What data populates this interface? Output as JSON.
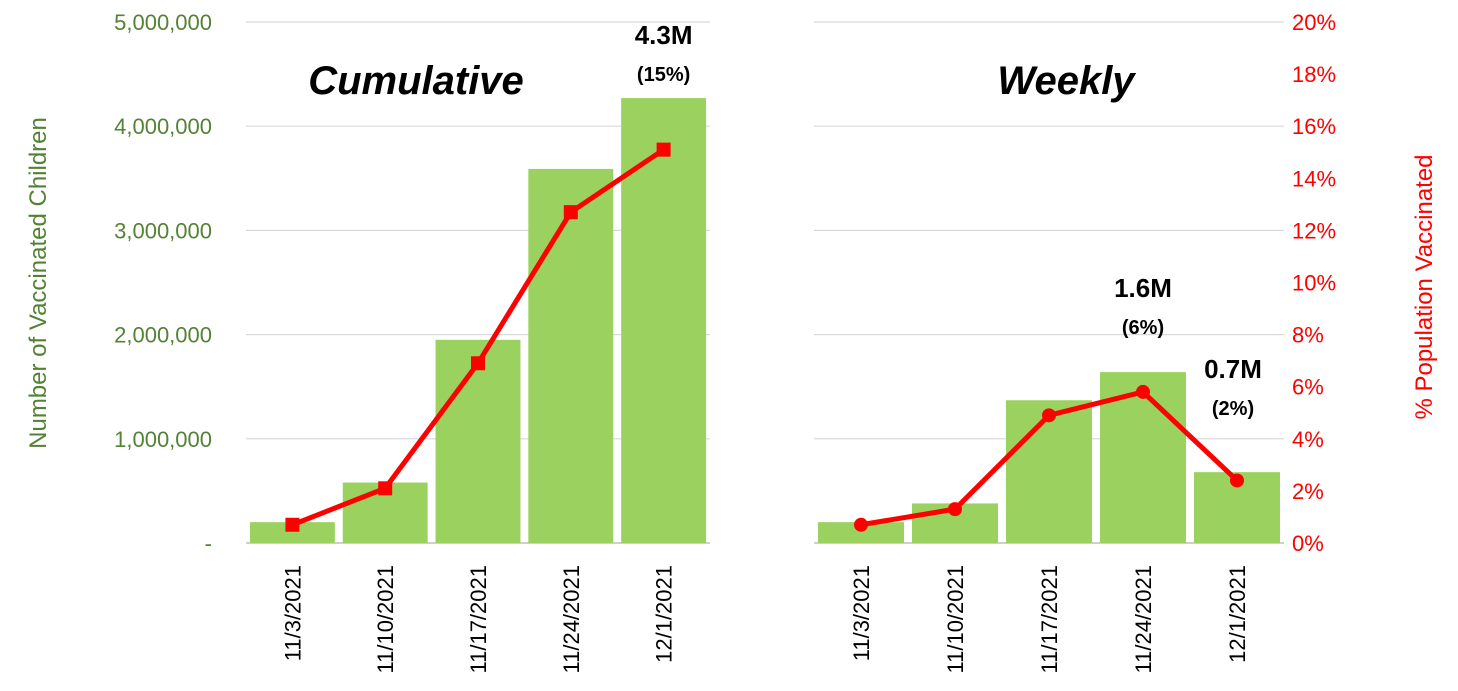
{
  "chart_data": [
    {
      "type": "bar",
      "title": "Cumulative",
      "categories": [
        "11/3/2021",
        "11/10/2021",
        "11/17/2021",
        "11/24/2021",
        "12/1/2021"
      ],
      "series": [
        {
          "values": [
            200000,
            580000,
            1950000,
            3590000,
            4270000
          ],
          "axis": "left",
          "color": "#9bd25f"
        },
        {
          "type": "line",
          "values": [
            0.7,
            2.1,
            6.9,
            12.7,
            15.1
          ],
          "axis": "right",
          "color": "#ff0000",
          "marker": "square"
        }
      ],
      "annotations": [
        {
          "category": "12/1/2021",
          "text": "4.3M",
          "subtext": "(15%)"
        }
      ]
    },
    {
      "type": "bar",
      "title": "Weekly",
      "categories": [
        "11/3/2021",
        "11/10/2021",
        "11/17/2021",
        "11/24/2021",
        "12/1/2021"
      ],
      "series": [
        {
          "values": [
            200000,
            380000,
            1370000,
            1640000,
            680000
          ],
          "axis": "left",
          "color": "#9bd25f"
        },
        {
          "type": "line",
          "values": [
            0.7,
            1.3,
            4.9,
            5.8,
            2.4
          ],
          "axis": "right",
          "color": "#ff0000",
          "marker": "circle"
        }
      ],
      "annotations": [
        {
          "category": "11/24/2021",
          "text": "1.6M",
          "subtext": "(6%)"
        },
        {
          "category": "12/1/2021",
          "text": "0.7M",
          "subtext": "(2%)"
        }
      ]
    }
  ],
  "left_axis": {
    "label": "Number of Vaccinated Children",
    "ylim": [
      0,
      5000000
    ],
    "ticks": [
      "-",
      "1,000,000",
      "2,000,000",
      "3,000,000",
      "4,000,000",
      "5,000,000"
    ],
    "color": "#548235"
  },
  "right_axis": {
    "label": "% Population Vaccinated",
    "ylim": [
      0,
      20
    ],
    "ticks": [
      "0%",
      "2%",
      "4%",
      "6%",
      "8%",
      "10%",
      "12%",
      "14%",
      "16%",
      "18%",
      "20%"
    ],
    "color": "#ff0000"
  },
  "grid": true,
  "colors": {
    "bar": "#9bd25f",
    "line": "#ff0000",
    "grid": "#d9d9d9"
  }
}
